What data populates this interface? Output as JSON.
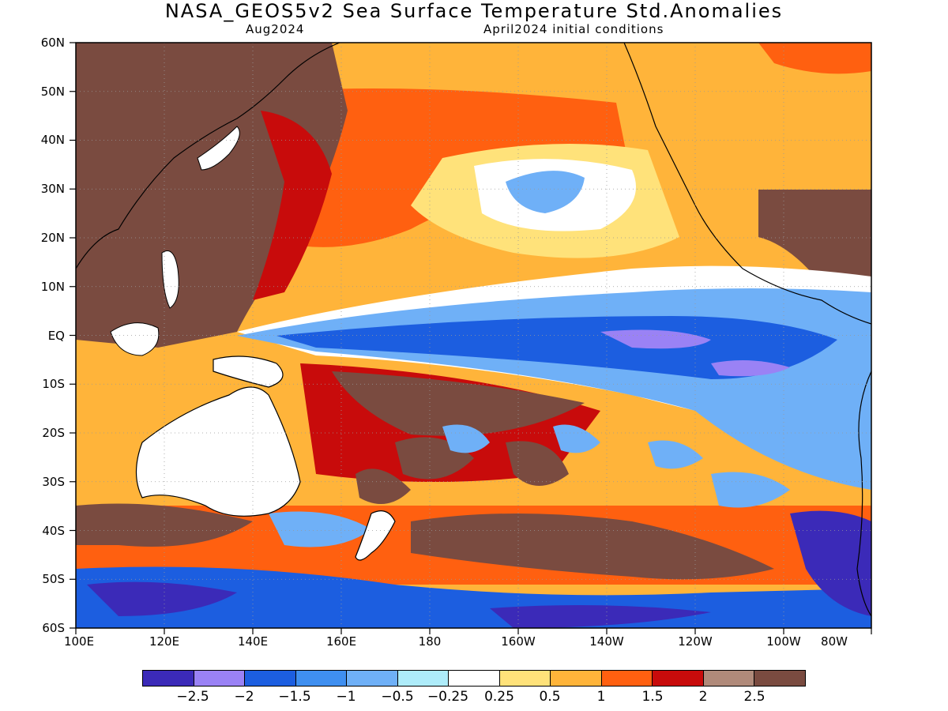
{
  "title": "NASA_GEOS5v2 Sea Surface Temperature Std.Anomalies",
  "subtitle_left": "Aug2024",
  "subtitle_right": "April2024 initial conditions",
  "lat_labels": [
    "60N",
    "50N",
    "40N",
    "30N",
    "20N",
    "10N",
    "EQ",
    "10S",
    "20S",
    "30S",
    "40S",
    "50S",
    "60S"
  ],
  "lon_labels": [
    "100E",
    "120E",
    "140E",
    "160E",
    "180",
    "160W",
    "140W",
    "120W",
    "100W",
    "80W"
  ],
  "legend": {
    "colors": [
      "#3b2ab8",
      "#9a82f5",
      "#1c5ee0",
      "#3f8ff0",
      "#6fb0f7",
      "#aeecfa",
      "#ffffff",
      "#ffe27a",
      "#ffb43a",
      "#ff6010",
      "#c80b0b",
      "#b08a7a",
      "#7a4b40"
    ],
    "labels": [
      "−2.5",
      "−2",
      "−1.5",
      "−1",
      "−0.5",
      "−0.25",
      "0.25",
      "0.5",
      "1",
      "1.5",
      "2",
      "2.5"
    ]
  },
  "palette": {
    "strong_cold": "#3b2ab8",
    "cold": "#1c5ee0",
    "cool": "#6fb0f7",
    "neutral": "#ffffff",
    "warm": "#ffb43a",
    "hot": "#c80b0b",
    "very_hot": "#7a4b40",
    "land": "#ffffff"
  }
}
